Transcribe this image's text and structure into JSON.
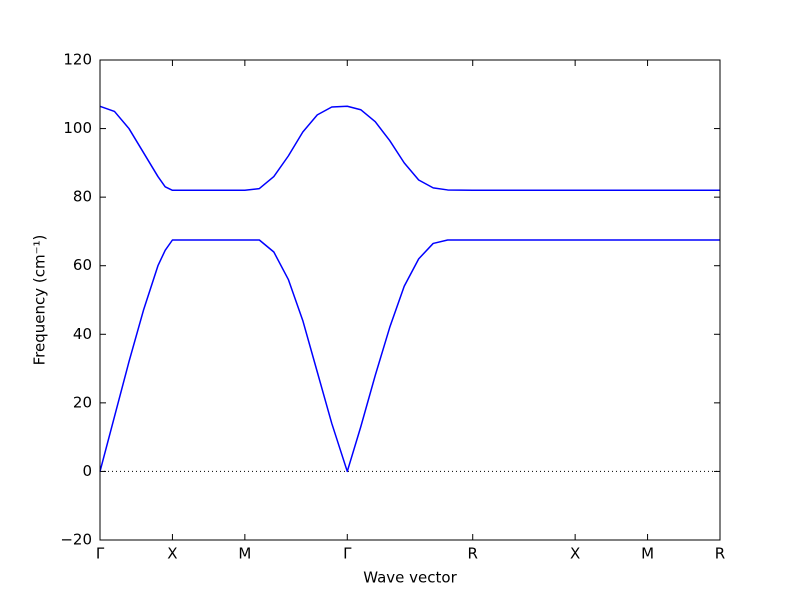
{
  "chart_data": {
    "type": "line",
    "xlabel": "Wave vector",
    "ylabel": "Frequency (cm⁻¹)",
    "x": [
      0,
      0.1,
      0.2,
      0.3,
      0.4,
      0.45,
      0.5,
      1.0,
      1.1,
      1.2,
      1.3,
      1.4,
      1.5,
      1.6,
      1.707,
      1.8,
      1.9,
      2.0,
      2.1,
      2.2,
      2.3,
      2.4,
      2.573,
      4.28
    ],
    "series": [
      {
        "color": "#0000ff",
        "values": [
          106.5,
          105,
          100,
          93,
          86,
          83,
          82,
          82,
          82.5,
          86,
          92,
          99,
          104,
          106.3,
          106.5,
          105.5,
          102,
          96.5,
          90,
          85,
          82.7,
          82.1,
          82,
          82
        ]
      },
      {
        "color": "#0000ff",
        "values": [
          0,
          16,
          32,
          47,
          60,
          64.5,
          67.5,
          67.5,
          67.5,
          64,
          56,
          44,
          29,
          14,
          0,
          13,
          28,
          42,
          54,
          62,
          66.5,
          67.5,
          67.5,
          67.5
        ]
      }
    ],
    "xlim": [
      0,
      4.28
    ],
    "ylim": [
      -20,
      120
    ],
    "xticks": [
      {
        "value": 0,
        "label": "Γ"
      },
      {
        "value": 0.5,
        "label": "X"
      },
      {
        "value": 1.0,
        "label": "M"
      },
      {
        "value": 1.707,
        "label": "Γ"
      },
      {
        "value": 2.573,
        "label": "R"
      },
      {
        "value": 3.28,
        "label": "X"
      },
      {
        "value": 3.78,
        "label": "M"
      },
      {
        "value": 4.28,
        "label": "R"
      }
    ],
    "yticks": [
      {
        "value": -20,
        "label": "−20"
      },
      0,
      20,
      40,
      60,
      80,
      100,
      120
    ],
    "zero_line": true
  }
}
